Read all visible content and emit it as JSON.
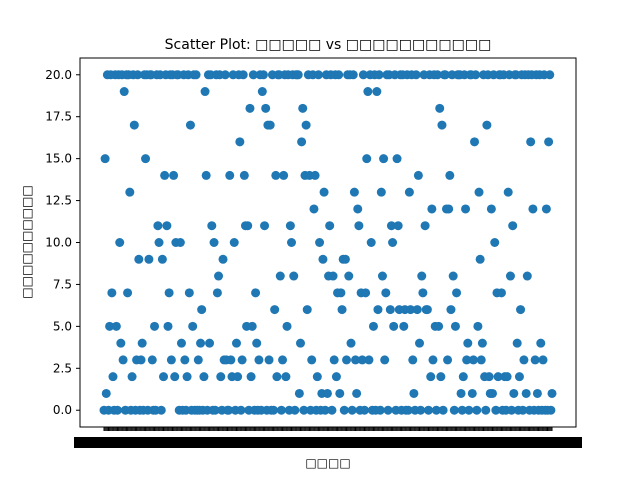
{
  "chart_data": {
    "type": "scatter",
    "title": "Scatter Plot: □□□□□ vs □□□□□□□□□□□",
    "xlabel": "□□□□",
    "ylabel": "□□□□□□□□□□",
    "ylim": [
      -1,
      21
    ],
    "yticks": [
      0.0,
      2.5,
      5.0,
      7.5,
      10.0,
      12.5,
      15.0,
      17.5,
      20.0
    ],
    "ytick_labels": [
      "0.0",
      "2.5",
      "5.0",
      "7.5",
      "10.0",
      "12.5",
      "15.0",
      "17.5",
      "20.0"
    ],
    "x_tick_count": 400,
    "x_tick_labels_overlapping": true,
    "marker_color": "#1f77b4",
    "grid": false,
    "legend": "none",
    "point_count": 400,
    "y": [
      0,
      15,
      1,
      20,
      0,
      5,
      20,
      7,
      2,
      0,
      20,
      5,
      0,
      20,
      10,
      4,
      20,
      3,
      19,
      0,
      20,
      7,
      20,
      13,
      0,
      2,
      20,
      17,
      0,
      3,
      20,
      9,
      0,
      3,
      4,
      0,
      20,
      15,
      20,
      0,
      9,
      20,
      20,
      3,
      0,
      5,
      0,
      20,
      11,
      10,
      20,
      0,
      9,
      2,
      14,
      20,
      11,
      5,
      7,
      20,
      3,
      20,
      14,
      2,
      10,
      20,
      20,
      0,
      10,
      4,
      0,
      20,
      3,
      0,
      2,
      20,
      7,
      17,
      0,
      5,
      20,
      0,
      20,
      0,
      3,
      0,
      4,
      6,
      0,
      2,
      19,
      14,
      0,
      20,
      4,
      20,
      11,
      0,
      10,
      0,
      20,
      7,
      8,
      20,
      2,
      0,
      9,
      3,
      20,
      3,
      0,
      0,
      14,
      3,
      2,
      20,
      10,
      0,
      4,
      2,
      20,
      16,
      0,
      3,
      20,
      14,
      11,
      5,
      11,
      0,
      18,
      2,
      5,
      20,
      0,
      7,
      4,
      0,
      3,
      20,
      0,
      19,
      20,
      11,
      18,
      0,
      17,
      3,
      17,
      0,
      20,
      0,
      6,
      14,
      2,
      20,
      20,
      8,
      0,
      3,
      14,
      20,
      2,
      5,
      20,
      0,
      11,
      10,
      20,
      8,
      0,
      20,
      20,
      20,
      1,
      4,
      16,
      18,
      0,
      14,
      17,
      6,
      20,
      14,
      0,
      3,
      20,
      12,
      14,
      0,
      2,
      20,
      10,
      0,
      1,
      9,
      13,
      0,
      20,
      1,
      8,
      11,
      20,
      0,
      8,
      3,
      20,
      2,
      7,
      20,
      1,
      7,
      6,
      9,
      0,
      9,
      3,
      20,
      8,
      20,
      4,
      0,
      20,
      13,
      3,
      1,
      12,
      11,
      0,
      7,
      3,
      20,
      0,
      7,
      15,
      19,
      3,
      20,
      10,
      0,
      5,
      20,
      0,
      19,
      6,
      20,
      0,
      13,
      8,
      15,
      3,
      7,
      20,
      0,
      20,
      6,
      11,
      10,
      5,
      20,
      0,
      15,
      11,
      6,
      20,
      0,
      20,
      5,
      6,
      0,
      20,
      0,
      13,
      6,
      20,
      3,
      1,
      0,
      20,
      6,
      14,
      4,
      0,
      8,
      7,
      20,
      11,
      6,
      6,
      0,
      20,
      2,
      12,
      3,
      20,
      5,
      0,
      20,
      5,
      18,
      2,
      17,
      0,
      20,
      20,
      12,
      3,
      12,
      14,
      6,
      20,
      8,
      0,
      5,
      7,
      20,
      20,
      20,
      1,
      0,
      2,
      20,
      12,
      3,
      4,
      0,
      20,
      20,
      1,
      3,
      16,
      20,
      0,
      5,
      13,
      9,
      3,
      4,
      20,
      2,
      0,
      17,
      20,
      2,
      1,
      12,
      1,
      20,
      10,
      0,
      7,
      2,
      20,
      20,
      7,
      0,
      20,
      2,
      0,
      2,
      13,
      20,
      8,
      0,
      11,
      1,
      20,
      20,
      4,
      0,
      2,
      6,
      20,
      0,
      3,
      20,
      1,
      8,
      20,
      0,
      16,
      20,
      12,
      0,
      3,
      20,
      1,
      0,
      20,
      4,
      0,
      3,
      20,
      0,
      12,
      0,
      16,
      20,
      0,
      1
    ]
  }
}
